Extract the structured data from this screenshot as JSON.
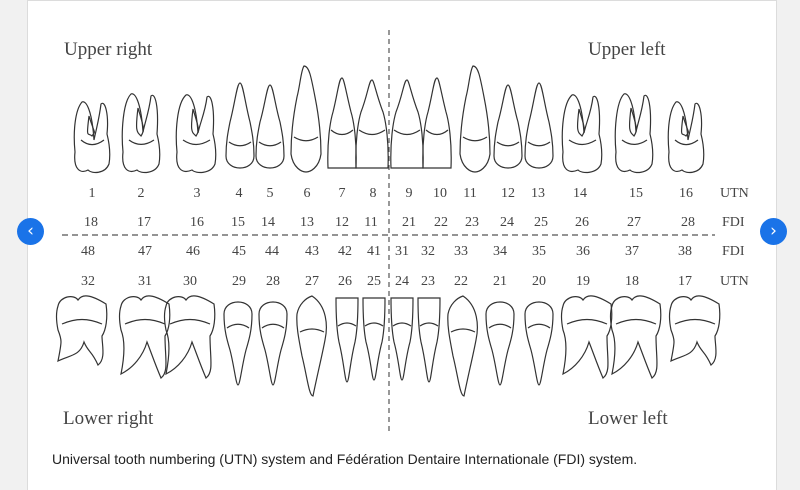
{
  "quadrants": {
    "upper_right": "Upper right",
    "upper_left": "Upper left",
    "lower_right": "Lower right",
    "lower_left": "Lower left"
  },
  "row_labels": {
    "upper_utn": "UTN",
    "upper_fdi": "FDI",
    "lower_fdi": "FDI",
    "lower_utn": "UTN"
  },
  "upper_utn": [
    "1",
    "2",
    "3",
    "4",
    "5",
    "6",
    "7",
    "8",
    "9",
    "10",
    "11",
    "12",
    "13",
    "14",
    "15",
    "16"
  ],
  "upper_fdi": [
    "18",
    "17",
    "16",
    "15",
    "14",
    "13",
    "12",
    "11",
    "21",
    "22",
    "23",
    "24",
    "25",
    "26",
    "27",
    "28"
  ],
  "lower_fdi": [
    "48",
    "47",
    "46",
    "45",
    "44",
    "43",
    "42",
    "41",
    "31",
    "32",
    "33",
    "34",
    "35",
    "36",
    "37",
    "38"
  ],
  "lower_utn": [
    "32",
    "31",
    "30",
    "29",
    "28",
    "27",
    "26",
    "25",
    "24",
    "23",
    "22",
    "21",
    "20",
    "19",
    "18",
    "17"
  ],
  "caption": "Universal tooth numbering (UTN) system and Fédération Dentaire Internationale (FDI) system.",
  "nav": {
    "prev": "‹",
    "next": "›"
  }
}
